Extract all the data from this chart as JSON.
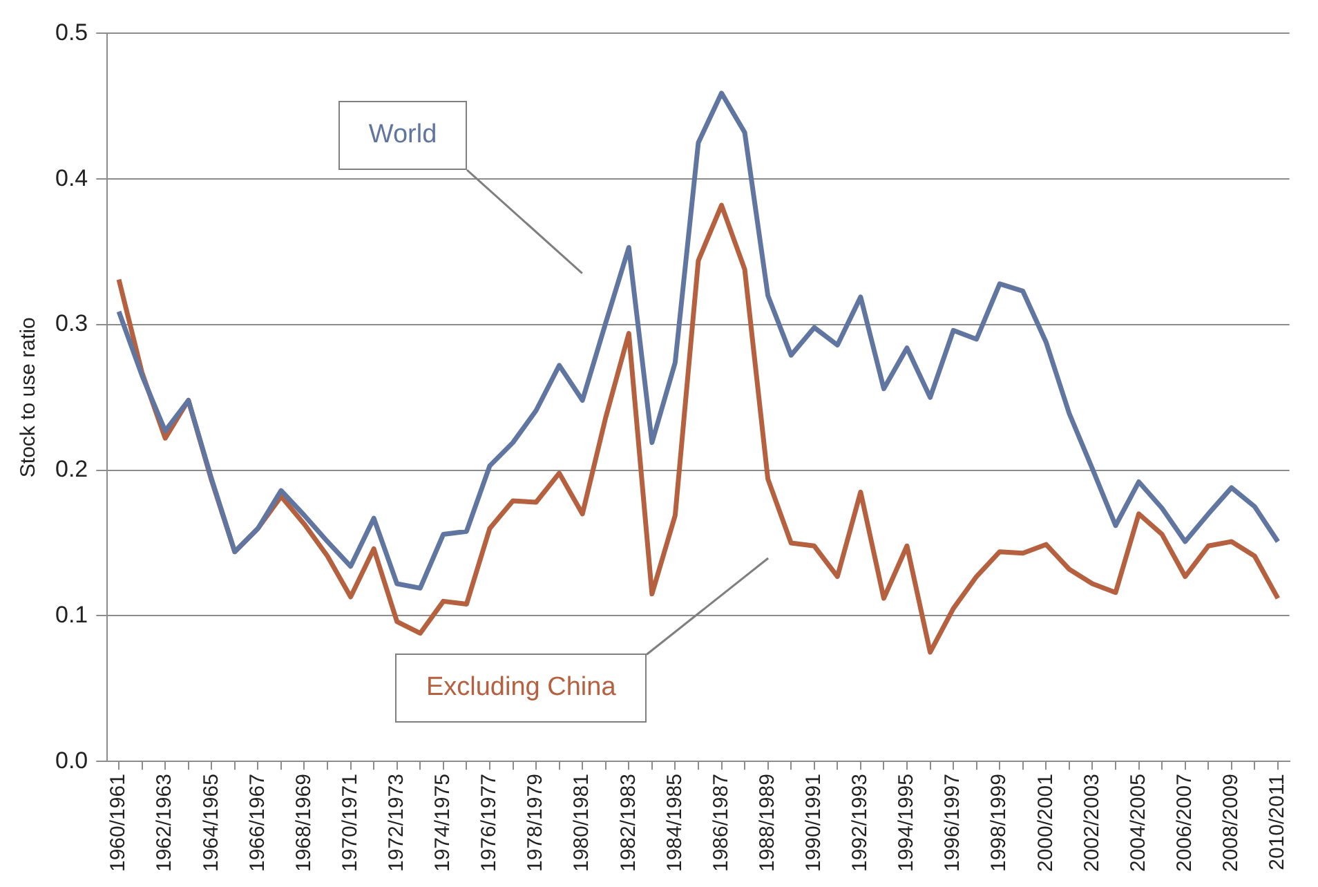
{
  "chart_data": {
    "type": "line",
    "ylabel": "Stock to use ratio",
    "categories": [
      "1960/1961",
      null,
      "1962/1963",
      null,
      "1964/1965",
      null,
      "1966/1967",
      null,
      "1968/1969",
      null,
      "1970/1971",
      null,
      "1972/1973",
      null,
      "1974/1975",
      null,
      "1976/1977",
      null,
      "1978/1979",
      null,
      "1980/1981",
      null,
      "1982/1983",
      null,
      "1984/1985",
      null,
      "1986/1987",
      null,
      "1988/1989",
      null,
      "1990/1991",
      null,
      "1992/1993",
      null,
      "1994/1995",
      null,
      "1996/1997",
      null,
      "1998/1999",
      null,
      "2000/2001",
      null,
      "2002/2003",
      null,
      "2004/2005",
      null,
      "2006/2007",
      null,
      "2008/2009",
      null,
      "2010/2011"
    ],
    "series": [
      {
        "name": "World",
        "color": "#6076a0",
        "values": [
          0.309,
          0.265,
          0.227,
          0.248,
          0.194,
          0.144,
          0.16,
          0.186,
          0.169,
          0.151,
          0.134,
          0.167,
          0.122,
          0.119,
          0.156,
          0.158,
          0.203,
          0.219,
          0.241,
          0.272,
          0.248,
          0.301,
          0.353,
          0.219,
          0.274,
          0.425,
          0.459,
          0.432,
          0.32,
          0.279,
          0.298,
          0.286,
          0.319,
          0.256,
          0.284,
          0.25,
          0.296,
          0.29,
          0.328,
          0.323,
          0.288,
          0.239,
          0.201,
          0.162,
          0.192,
          0.174,
          0.151,
          0.17,
          0.188,
          0.175,
          0.151
        ]
      },
      {
        "name": "Excluding China",
        "color": "#b5603f",
        "values": [
          0.331,
          0.267,
          0.222,
          0.248,
          0.193,
          0.144,
          0.16,
          0.182,
          0.163,
          0.141,
          0.113,
          0.146,
          0.096,
          0.088,
          0.11,
          0.108,
          0.16,
          0.179,
          0.178,
          0.198,
          0.17,
          0.236,
          0.294,
          0.115,
          0.169,
          0.344,
          0.382,
          0.338,
          0.194,
          0.15,
          0.148,
          0.127,
          0.185,
          0.112,
          0.148,
          0.075,
          0.105,
          0.127,
          0.144,
          0.143,
          0.149,
          0.132,
          0.122,
          0.116,
          0.17,
          0.156,
          0.127,
          0.148,
          0.151,
          0.141,
          0.112
        ]
      }
    ],
    "ylim": [
      0,
      0.5
    ],
    "yticks": [
      {
        "value": 0,
        "label": "0.0"
      },
      0.1,
      0.2,
      0.3,
      0.4,
      0.5
    ],
    "grid": "y",
    "legend": false,
    "marker": "none",
    "line_style": "solid"
  }
}
